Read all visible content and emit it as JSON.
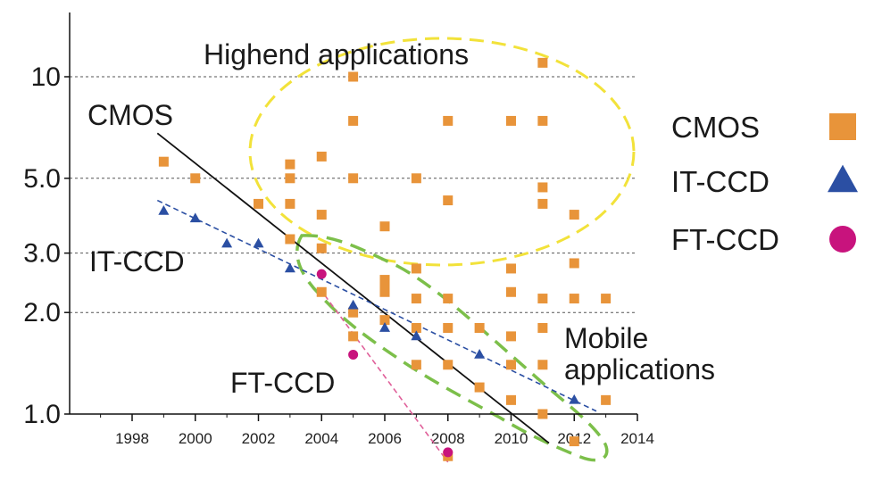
{
  "chart_data": {
    "type": "scatter",
    "yscale": "log",
    "xlim": [
      1996,
      2014
    ],
    "ylim": [
      0.75,
      16
    ],
    "x_ticks": [
      1998,
      2000,
      2002,
      2004,
      2006,
      2008,
      2010,
      2012,
      2014
    ],
    "y_ticks": [
      {
        "value": 1.0,
        "label": "1.0"
      },
      {
        "value": 2.0,
        "label": "2.0"
      },
      {
        "value": 3.0,
        "label": "3.0"
      },
      {
        "value": 5.0,
        "label": "5.0"
      },
      {
        "value": 10,
        "label": "10"
      }
    ],
    "grid": "dashed horizontal lines at 2.0, 3.0, 5.0, 10",
    "legend_position": "right",
    "series": [
      {
        "name": "CMOS",
        "marker": "square",
        "color": "#e8943a",
        "points": [
          [
            1999,
            5.6
          ],
          [
            2000,
            5.0
          ],
          [
            2002,
            4.2
          ],
          [
            2003,
            5.5
          ],
          [
            2003,
            5.0
          ],
          [
            2003,
            4.2
          ],
          [
            2003,
            3.3
          ],
          [
            2004,
            5.8
          ],
          [
            2004,
            3.9
          ],
          [
            2004,
            3.1
          ],
          [
            2004,
            2.3
          ],
          [
            2005,
            10.0
          ],
          [
            2005,
            7.4
          ],
          [
            2005,
            5.0
          ],
          [
            2005,
            2.0
          ],
          [
            2005,
            1.7
          ],
          [
            2006,
            3.6
          ],
          [
            2006,
            2.5
          ],
          [
            2006,
            2.4
          ],
          [
            2006,
            2.3
          ],
          [
            2006,
            1.9
          ],
          [
            2007,
            5.0
          ],
          [
            2007,
            2.7
          ],
          [
            2007,
            2.2
          ],
          [
            2007,
            1.8
          ],
          [
            2007,
            1.4
          ],
          [
            2008,
            7.4
          ],
          [
            2008,
            4.3
          ],
          [
            2008,
            2.2
          ],
          [
            2008,
            1.8
          ],
          [
            2008,
            1.4
          ],
          [
            2008,
            0.75
          ],
          [
            2009,
            1.8
          ],
          [
            2009,
            1.2
          ],
          [
            2010,
            7.4
          ],
          [
            2010,
            2.7
          ],
          [
            2010,
            2.3
          ],
          [
            2010,
            1.7
          ],
          [
            2010,
            1.4
          ],
          [
            2010,
            1.1
          ],
          [
            2011,
            11.0
          ],
          [
            2011,
            7.4
          ],
          [
            2011,
            4.7
          ],
          [
            2011,
            4.2
          ],
          [
            2011,
            2.2
          ],
          [
            2011,
            1.8
          ],
          [
            2011,
            1.4
          ],
          [
            2011,
            1.0
          ],
          [
            2012,
            3.9
          ],
          [
            2012,
            2.8
          ],
          [
            2012,
            2.2
          ],
          [
            2012,
            0.83
          ],
          [
            2013,
            2.2
          ],
          [
            2013,
            1.1
          ]
        ]
      },
      {
        "name": "IT-CCD",
        "marker": "triangle",
        "color": "#2b4fa3",
        "points": [
          [
            1999,
            4.0
          ],
          [
            2000,
            3.8
          ],
          [
            2001,
            3.2
          ],
          [
            2002,
            3.2
          ],
          [
            2003,
            2.7
          ],
          [
            2005,
            2.1
          ],
          [
            2006,
            1.8
          ],
          [
            2007,
            1.7
          ],
          [
            2009,
            1.5
          ],
          [
            2012,
            1.1
          ]
        ]
      },
      {
        "name": "FT-CCD",
        "marker": "circle",
        "color": "#c8137d",
        "points": [
          [
            2004,
            2.6
          ],
          [
            2005,
            1.5
          ],
          [
            2008,
            0.77
          ]
        ]
      }
    ],
    "trend_lines": [
      {
        "series": "CMOS",
        "style": "solid",
        "color": "#111111",
        "from": [
          1998.8,
          6.8
        ],
        "to": [
          2011.2,
          0.82
        ]
      },
      {
        "series": "IT-CCD",
        "style": "dashed",
        "color": "#2b4fa3",
        "from": [
          1998.8,
          4.3
        ],
        "to": [
          2012.7,
          1.02
        ]
      },
      {
        "series": "FT-CCD",
        "style": "dashed",
        "color": "#e0609a",
        "from": [
          2004.1,
          2.25
        ],
        "to": [
          2008.0,
          0.72
        ]
      }
    ],
    "annotations": [
      {
        "text": "Highend applications",
        "target": "yellow dashed ellipse"
      },
      {
        "text": "Mobile applications",
        "target": "green dashed outline"
      },
      {
        "text": "CMOS",
        "target": "solid black trend line"
      },
      {
        "text": "IT-CCD",
        "target": "blue dashed trend line"
      },
      {
        "text": "FT-CCD",
        "target": "pink dashed trend line"
      }
    ],
    "region_colors": {
      "highend": "#f2e23a",
      "mobile": "#7cbf4a"
    },
    "labels": {
      "cmos_line": "CMOS",
      "itccd_line": "IT-CCD",
      "ftccd_line": "FT-CCD",
      "highend": "Highend applications",
      "mobile_line1": "Mobile",
      "mobile_line2": "applications"
    },
    "legend": [
      {
        "label": "CMOS",
        "marker": "square",
        "color": "#e8943a"
      },
      {
        "label": "IT-CCD",
        "marker": "triangle",
        "color": "#2b4fa3"
      },
      {
        "label": "FT-CCD",
        "marker": "circle",
        "color": "#c8137d"
      }
    ]
  }
}
